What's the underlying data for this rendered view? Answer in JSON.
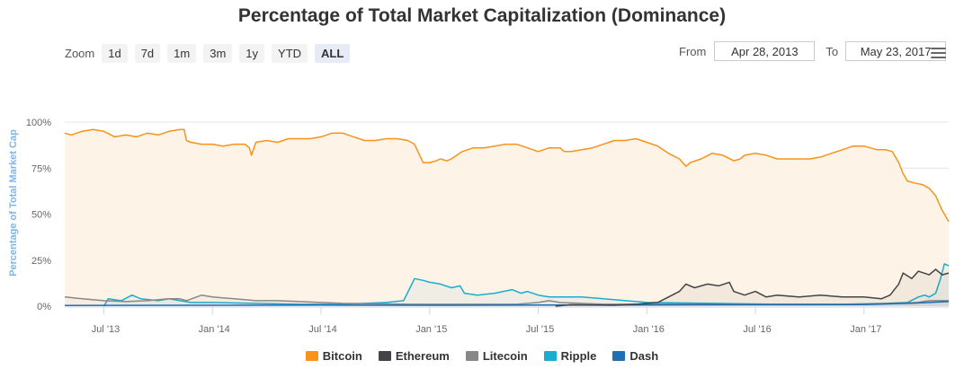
{
  "chart_data": {
    "type": "line",
    "title": "Percentage of Total Market Capitalization (Dominance)",
    "ylabel": "Percentage of Total Market Cap",
    "xlabel": "",
    "ylim": [
      0,
      100
    ],
    "y_ticks": [
      "0%",
      "25%",
      "50%",
      "75%",
      "100%"
    ],
    "y_tick_values": [
      0,
      25,
      50,
      75,
      100
    ],
    "x_range": [
      2013.32,
      2017.39
    ],
    "x_ticks": [
      {
        "label": "Jul '13",
        "x": 2013.5
      },
      {
        "label": "Jan '14",
        "x": 2014.0
      },
      {
        "label": "Jul '14",
        "x": 2014.5
      },
      {
        "label": "Jan '15",
        "x": 2015.0
      },
      {
        "label": "Jul '15",
        "x": 2015.5
      },
      {
        "label": "Jan '16",
        "x": 2016.0
      },
      {
        "label": "Jul '16",
        "x": 2016.5
      },
      {
        "label": "Jan '17",
        "x": 2017.0
      }
    ],
    "grid": true,
    "legend_position": "bottom",
    "series": [
      {
        "name": "Bitcoin",
        "color": "#f7931a",
        "points": [
          [
            2013.32,
            94
          ],
          [
            2013.35,
            93
          ],
          [
            2013.4,
            95
          ],
          [
            2013.45,
            96
          ],
          [
            2013.5,
            95
          ],
          [
            2013.55,
            92
          ],
          [
            2013.6,
            93
          ],
          [
            2013.65,
            92
          ],
          [
            2013.7,
            94
          ],
          [
            2013.75,
            93
          ],
          [
            2013.8,
            95
          ],
          [
            2013.85,
            96
          ],
          [
            2013.87,
            96
          ],
          [
            2013.88,
            90
          ],
          [
            2013.9,
            89
          ],
          [
            2013.95,
            88
          ],
          [
            2014.0,
            88
          ],
          [
            2014.05,
            87
          ],
          [
            2014.1,
            88
          ],
          [
            2014.15,
            88
          ],
          [
            2014.17,
            86
          ],
          [
            2014.18,
            82
          ],
          [
            2014.2,
            89
          ],
          [
            2014.25,
            90
          ],
          [
            2014.3,
            89
          ],
          [
            2014.35,
            91
          ],
          [
            2014.4,
            91
          ],
          [
            2014.45,
            91
          ],
          [
            2014.5,
            92
          ],
          [
            2014.55,
            94
          ],
          [
            2014.6,
            94
          ],
          [
            2014.65,
            92
          ],
          [
            2014.7,
            90
          ],
          [
            2014.75,
            90
          ],
          [
            2014.8,
            91
          ],
          [
            2014.85,
            91
          ],
          [
            2014.9,
            90
          ],
          [
            2014.93,
            88
          ],
          [
            2014.95,
            83
          ],
          [
            2014.97,
            78
          ],
          [
            2015.0,
            78
          ],
          [
            2015.03,
            79
          ],
          [
            2015.05,
            80
          ],
          [
            2015.08,
            79
          ],
          [
            2015.1,
            80
          ],
          [
            2015.15,
            84
          ],
          [
            2015.2,
            86
          ],
          [
            2015.25,
            86
          ],
          [
            2015.3,
            87
          ],
          [
            2015.35,
            88
          ],
          [
            2015.4,
            88
          ],
          [
            2015.45,
            86
          ],
          [
            2015.5,
            84
          ],
          [
            2015.55,
            86
          ],
          [
            2015.6,
            86
          ],
          [
            2015.62,
            84
          ],
          [
            2015.65,
            84
          ],
          [
            2015.7,
            85
          ],
          [
            2015.75,
            86
          ],
          [
            2015.8,
            88
          ],
          [
            2015.85,
            90
          ],
          [
            2015.9,
            90
          ],
          [
            2015.95,
            91
          ],
          [
            2016.0,
            89
          ],
          [
            2016.05,
            87
          ],
          [
            2016.1,
            83
          ],
          [
            2016.15,
            80
          ],
          [
            2016.18,
            76
          ],
          [
            2016.2,
            78
          ],
          [
            2016.25,
            80
          ],
          [
            2016.3,
            83
          ],
          [
            2016.35,
            82
          ],
          [
            2016.4,
            79
          ],
          [
            2016.43,
            80
          ],
          [
            2016.45,
            82
          ],
          [
            2016.5,
            83
          ],
          [
            2016.55,
            82
          ],
          [
            2016.6,
            80
          ],
          [
            2016.65,
            80
          ],
          [
            2016.7,
            80
          ],
          [
            2016.75,
            80
          ],
          [
            2016.8,
            81
          ],
          [
            2016.85,
            83
          ],
          [
            2016.9,
            85
          ],
          [
            2016.95,
            87
          ],
          [
            2017.0,
            87
          ],
          [
            2017.03,
            86
          ],
          [
            2017.06,
            85
          ],
          [
            2017.1,
            85
          ],
          [
            2017.13,
            84
          ],
          [
            2017.16,
            78
          ],
          [
            2017.18,
            72
          ],
          [
            2017.2,
            68
          ],
          [
            2017.23,
            67
          ],
          [
            2017.27,
            66
          ],
          [
            2017.3,
            64
          ],
          [
            2017.33,
            60
          ],
          [
            2017.36,
            52
          ],
          [
            2017.39,
            46
          ]
        ]
      },
      {
        "name": "Ethereum",
        "color": "#434348",
        "points": [
          [
            2015.58,
            0
          ],
          [
            2015.65,
            0.8
          ],
          [
            2015.75,
            0.6
          ],
          [
            2015.85,
            0.5
          ],
          [
            2015.95,
            1
          ],
          [
            2016.0,
            1.5
          ],
          [
            2016.05,
            2
          ],
          [
            2016.1,
            5
          ],
          [
            2016.15,
            8
          ],
          [
            2016.18,
            12
          ],
          [
            2016.22,
            10
          ],
          [
            2016.28,
            12
          ],
          [
            2016.33,
            11
          ],
          [
            2016.38,
            13
          ],
          [
            2016.4,
            8
          ],
          [
            2016.45,
            6
          ],
          [
            2016.5,
            8
          ],
          [
            2016.55,
            5
          ],
          [
            2016.6,
            6
          ],
          [
            2016.7,
            5
          ],
          [
            2016.8,
            6
          ],
          [
            2016.9,
            5
          ],
          [
            2017.0,
            5
          ],
          [
            2017.08,
            4
          ],
          [
            2017.12,
            6
          ],
          [
            2017.16,
            12
          ],
          [
            2017.18,
            18
          ],
          [
            2017.22,
            15
          ],
          [
            2017.25,
            19
          ],
          [
            2017.3,
            17
          ],
          [
            2017.33,
            20
          ],
          [
            2017.36,
            17
          ],
          [
            2017.39,
            18
          ]
        ]
      },
      {
        "name": "Litecoin",
        "color": "#888888",
        "points": [
          [
            2013.32,
            5
          ],
          [
            2013.4,
            4
          ],
          [
            2013.5,
            3
          ],
          [
            2013.6,
            2.5
          ],
          [
            2013.7,
            3
          ],
          [
            2013.8,
            4
          ],
          [
            2013.85,
            4
          ],
          [
            2013.88,
            3
          ],
          [
            2013.95,
            6
          ],
          [
            2014.0,
            5
          ],
          [
            2014.1,
            4
          ],
          [
            2014.2,
            3
          ],
          [
            2014.3,
            3
          ],
          [
            2014.4,
            2.5
          ],
          [
            2014.5,
            2
          ],
          [
            2014.6,
            1.5
          ],
          [
            2014.8,
            1.2
          ],
          [
            2014.9,
            1
          ],
          [
            2015.0,
            1
          ],
          [
            2015.2,
            1
          ],
          [
            2015.4,
            1
          ],
          [
            2015.5,
            2
          ],
          [
            2015.55,
            3
          ],
          [
            2015.6,
            2
          ],
          [
            2015.8,
            1
          ],
          [
            2016.0,
            1
          ],
          [
            2016.3,
            1
          ],
          [
            2016.5,
            1
          ],
          [
            2016.7,
            1
          ],
          [
            2017.0,
            1
          ],
          [
            2017.15,
            1.5
          ],
          [
            2017.25,
            2
          ],
          [
            2017.3,
            3
          ],
          [
            2017.35,
            3
          ],
          [
            2017.39,
            3
          ]
        ]
      },
      {
        "name": "Ripple",
        "color": "#1aadce",
        "points": [
          [
            2013.5,
            0
          ],
          [
            2013.52,
            4
          ],
          [
            2013.58,
            3
          ],
          [
            2013.63,
            6
          ],
          [
            2013.67,
            4
          ],
          [
            2013.75,
            3
          ],
          [
            2013.8,
            4
          ],
          [
            2013.9,
            2
          ],
          [
            2014.0,
            2
          ],
          [
            2014.2,
            1.5
          ],
          [
            2014.4,
            1
          ],
          [
            2014.6,
            1
          ],
          [
            2014.8,
            2
          ],
          [
            2014.88,
            3
          ],
          [
            2014.91,
            10
          ],
          [
            2014.93,
            15
          ],
          [
            2014.97,
            14
          ],
          [
            2015.0,
            13
          ],
          [
            2015.05,
            12
          ],
          [
            2015.1,
            10
          ],
          [
            2015.14,
            11
          ],
          [
            2015.16,
            7
          ],
          [
            2015.22,
            6
          ],
          [
            2015.3,
            7
          ],
          [
            2015.38,
            9
          ],
          [
            2015.42,
            7
          ],
          [
            2015.45,
            8
          ],
          [
            2015.5,
            6
          ],
          [
            2015.55,
            5
          ],
          [
            2015.7,
            5
          ],
          [
            2015.8,
            4
          ],
          [
            2016.0,
            2
          ],
          [
            2016.3,
            1.5
          ],
          [
            2016.6,
            1
          ],
          [
            2016.9,
            1
          ],
          [
            2017.1,
            1.5
          ],
          [
            2017.2,
            2
          ],
          [
            2017.25,
            5
          ],
          [
            2017.28,
            6
          ],
          [
            2017.3,
            5
          ],
          [
            2017.33,
            7
          ],
          [
            2017.35,
            14
          ],
          [
            2017.37,
            23
          ],
          [
            2017.39,
            22
          ]
        ]
      },
      {
        "name": "Dash",
        "color": "#1f6fb4",
        "points": [
          [
            2013.32,
            0.4
          ],
          [
            2014.0,
            0.5
          ],
          [
            2014.5,
            0.6
          ],
          [
            2015.0,
            0.5
          ],
          [
            2015.5,
            0.6
          ],
          [
            2016.0,
            0.7
          ],
          [
            2016.5,
            0.8
          ],
          [
            2017.0,
            0.9
          ],
          [
            2017.2,
            1.5
          ],
          [
            2017.3,
            2
          ],
          [
            2017.39,
            2.5
          ]
        ]
      }
    ]
  },
  "toolbar": {
    "zoom_label": "Zoom",
    "buttons": [
      "1d",
      "7d",
      "1m",
      "3m",
      "1y",
      "YTD",
      "ALL"
    ],
    "active": "ALL"
  },
  "range": {
    "from_label": "From",
    "from_value": "Apr 28, 2013",
    "to_label": "To",
    "to_value": "May 23, 2017"
  },
  "menu": {
    "icon": "hamburger-menu-icon"
  },
  "colors": {
    "area_fill": "#fdf3e6",
    "grid": "#e6e6e6",
    "axis_label": "#7cb5ec"
  }
}
